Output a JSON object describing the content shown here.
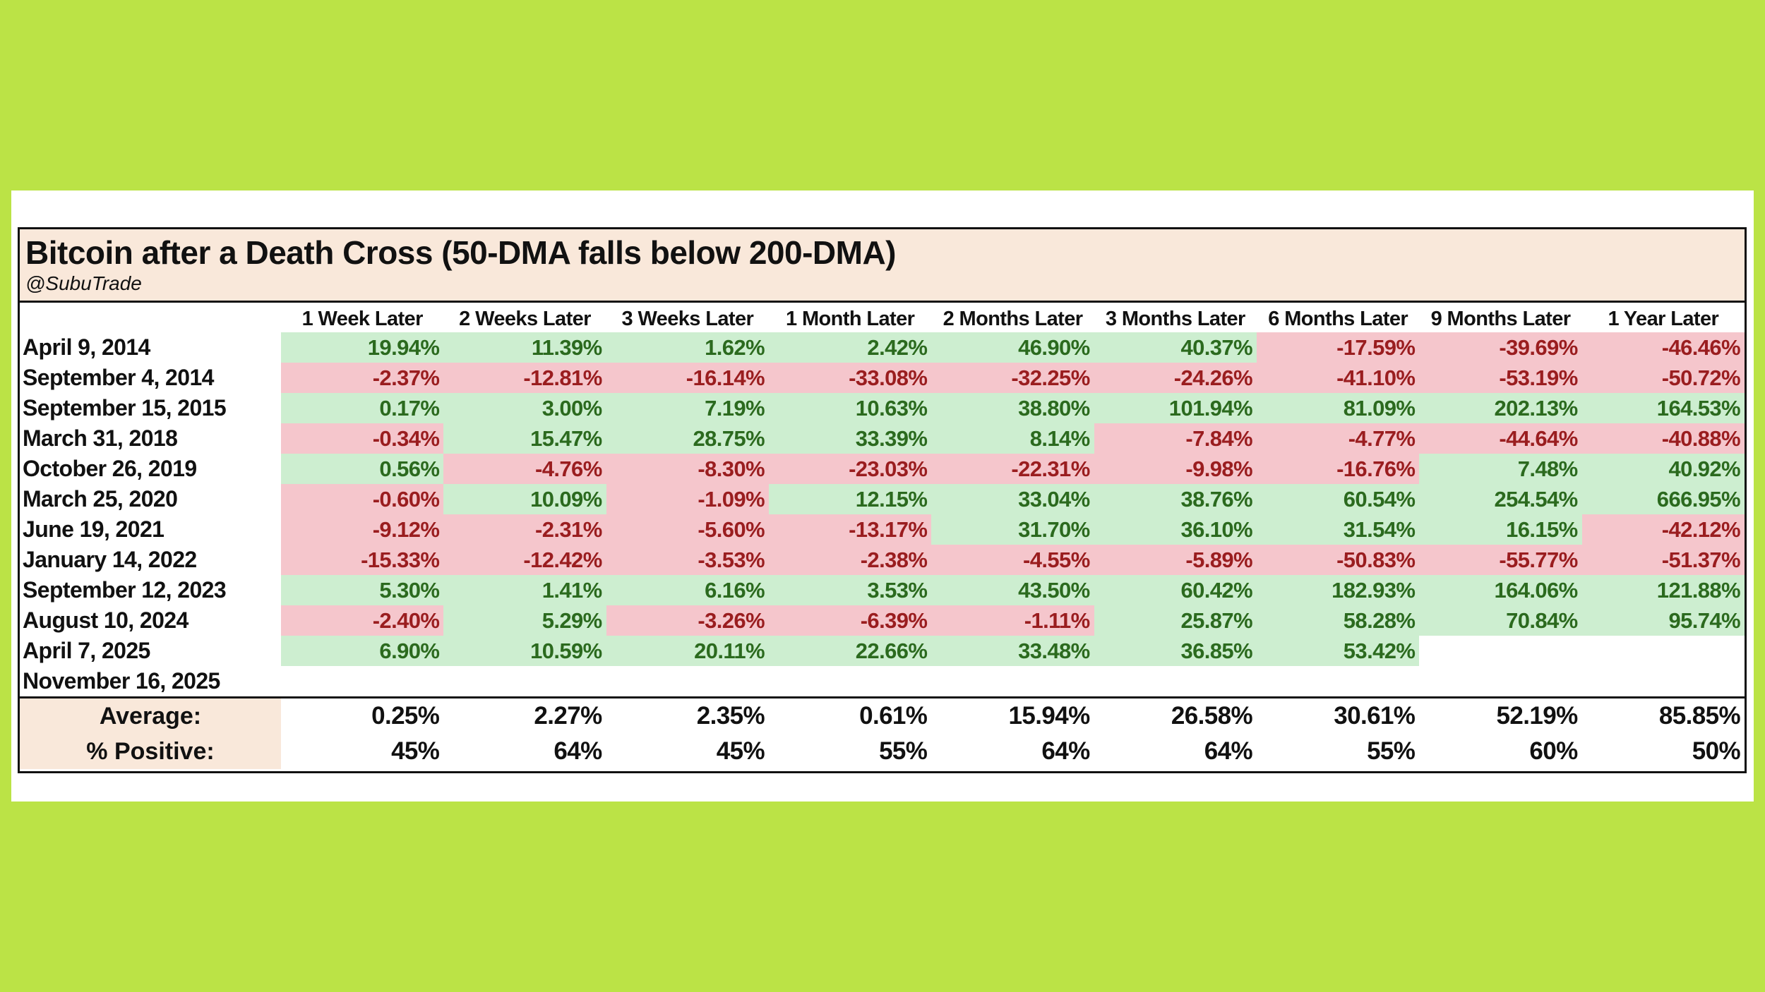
{
  "title": "Bitcoin after a Death Cross (50-DMA falls below 200-DMA)",
  "author": "@SubuTrade",
  "colors": {
    "background": "#bbe346",
    "positive_fill": "#cdeed0",
    "positive_text": "#2b6a1e",
    "negative_fill": "#f5c6cc",
    "negative_text": "#9a1d1f",
    "header_fill": "#f9e8da"
  },
  "columns": [
    "1 Week Later",
    "2 Weeks Later",
    "3 Weeks Later",
    "1 Month Later",
    "2 Months Later",
    "3 Months Later",
    "6 Months Later",
    "9 Months Later",
    "1 Year Later"
  ],
  "rows": [
    {
      "date": "April 9, 2014",
      "values": [
        "19.94%",
        "11.39%",
        "1.62%",
        "2.42%",
        "46.90%",
        "40.37%",
        "-17.59%",
        "-39.69%",
        "-46.46%"
      ]
    },
    {
      "date": "September 4, 2014",
      "values": [
        "-2.37%",
        "-12.81%",
        "-16.14%",
        "-33.08%",
        "-32.25%",
        "-24.26%",
        "-41.10%",
        "-53.19%",
        "-50.72%"
      ]
    },
    {
      "date": "September 15, 2015",
      "values": [
        "0.17%",
        "3.00%",
        "7.19%",
        "10.63%",
        "38.80%",
        "101.94%",
        "81.09%",
        "202.13%",
        "164.53%"
      ]
    },
    {
      "date": "March 31, 2018",
      "values": [
        "-0.34%",
        "15.47%",
        "28.75%",
        "33.39%",
        "8.14%",
        "-7.84%",
        "-4.77%",
        "-44.64%",
        "-40.88%"
      ]
    },
    {
      "date": "October 26, 2019",
      "values": [
        "0.56%",
        "-4.76%",
        "-8.30%",
        "-23.03%",
        "-22.31%",
        "-9.98%",
        "-16.76%",
        "7.48%",
        "40.92%"
      ]
    },
    {
      "date": "March 25, 2020",
      "values": [
        "-0.60%",
        "10.09%",
        "-1.09%",
        "12.15%",
        "33.04%",
        "38.76%",
        "60.54%",
        "254.54%",
        "666.95%"
      ]
    },
    {
      "date": "June 19, 2021",
      "values": [
        "-9.12%",
        "-2.31%",
        "-5.60%",
        "-13.17%",
        "31.70%",
        "36.10%",
        "31.54%",
        "16.15%",
        "-42.12%"
      ]
    },
    {
      "date": "January 14, 2022",
      "values": [
        "-15.33%",
        "-12.42%",
        "-3.53%",
        "-2.38%",
        "-4.55%",
        "-5.89%",
        "-50.83%",
        "-55.77%",
        "-51.37%"
      ]
    },
    {
      "date": "September 12, 2023",
      "values": [
        "5.30%",
        "1.41%",
        "6.16%",
        "3.53%",
        "43.50%",
        "60.42%",
        "182.93%",
        "164.06%",
        "121.88%"
      ]
    },
    {
      "date": "August 10, 2024",
      "values": [
        "-2.40%",
        "5.29%",
        "-3.26%",
        "-6.39%",
        "-1.11%",
        "25.87%",
        "58.28%",
        "70.84%",
        "95.74%"
      ]
    },
    {
      "date": "April 7, 2025",
      "values": [
        "6.90%",
        "10.59%",
        "20.11%",
        "22.66%",
        "33.48%",
        "36.85%",
        "53.42%",
        "",
        ""
      ]
    },
    {
      "date": "November 16, 2025",
      "values": [
        "",
        "",
        "",
        "",
        "",
        "",
        "",
        "",
        ""
      ]
    }
  ],
  "summary": [
    {
      "label": "Average:",
      "values": [
        "0.25%",
        "2.27%",
        "2.35%",
        "0.61%",
        "15.94%",
        "26.58%",
        "30.61%",
        "52.19%",
        "85.85%"
      ]
    },
    {
      "label": "% Positive:",
      "values": [
        "45%",
        "64%",
        "45%",
        "55%",
        "64%",
        "64%",
        "55%",
        "60%",
        "50%"
      ]
    }
  ]
}
